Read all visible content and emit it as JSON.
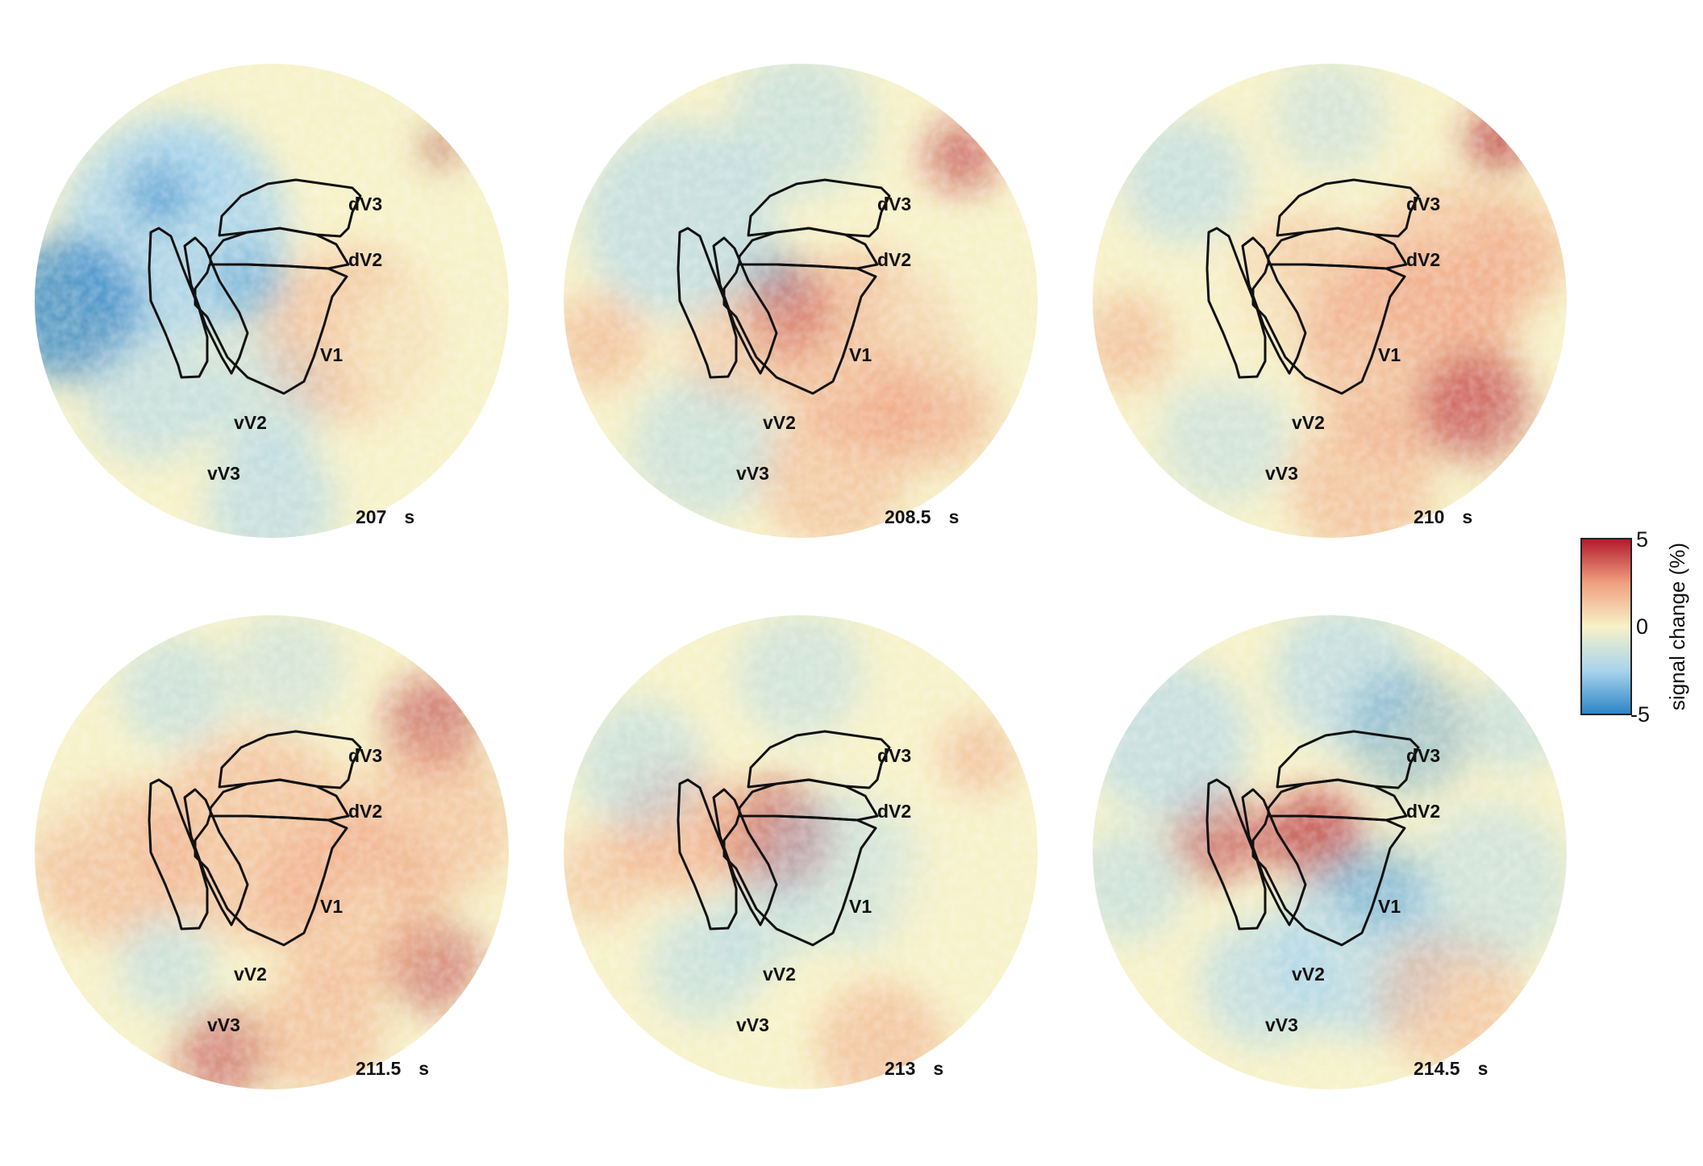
{
  "panels": [
    {
      "time": "207",
      "unit": "s",
      "tone": "cool",
      "regions": {
        "dV3": "dV3",
        "dV2": "dV2",
        "V1": "V1",
        "vV2": "vV2",
        "vV3": "vV3"
      }
    },
    {
      "time": "208.5",
      "unit": "s",
      "tone": "mixed",
      "regions": {
        "dV3": "dV3",
        "dV2": "dV2",
        "V1": "V1",
        "vV2": "vV2",
        "vV3": "vV3"
      }
    },
    {
      "time": "210",
      "unit": "s",
      "tone": "warm",
      "regions": {
        "dV3": "dV3",
        "dV2": "dV2",
        "V1": "V1",
        "vV2": "vV2",
        "vV3": "vV3"
      }
    },
    {
      "time": "211.5",
      "unit": "s",
      "tone": "warm",
      "regions": {
        "dV3": "dV3",
        "dV2": "dV2",
        "V1": "V1",
        "vV2": "vV2",
        "vV3": "vV3"
      }
    },
    {
      "time": "213",
      "unit": "s",
      "tone": "mixed",
      "regions": {
        "dV3": "dV3",
        "dV2": "dV2",
        "V1": "V1",
        "vV2": "vV2",
        "vV3": "vV3"
      }
    },
    {
      "time": "214.5",
      "unit": "s",
      "tone": "cool",
      "regions": {
        "dV3": "dV3",
        "dV2": "dV2",
        "V1": "V1",
        "vV2": "vV2",
        "vV3": "vV3"
      }
    }
  ],
  "colorbar": {
    "title": "signal change (%)",
    "ticks": [
      "5",
      "0",
      "-5"
    ],
    "range": [
      -5,
      5
    ],
    "colors": {
      "high": "#b2182b",
      "mid_high": "#ef9f7f",
      "mid": "#f7f2c8",
      "mid_low": "#a8d4ec",
      "low": "#2b83c6"
    }
  }
}
